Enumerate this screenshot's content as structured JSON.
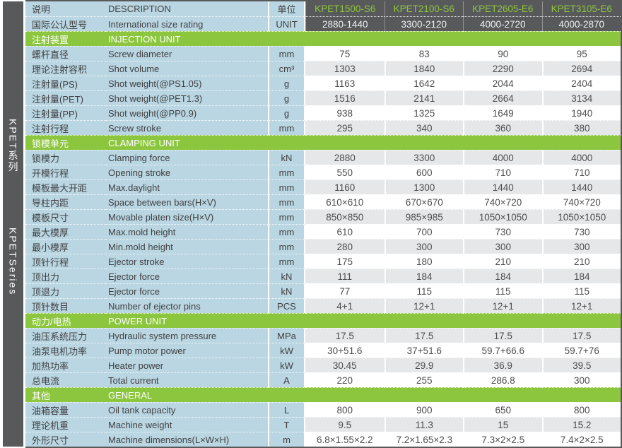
{
  "sidebar": {
    "series_cn": "KPET系列",
    "series_en": "KPETSeries"
  },
  "header": {
    "desc_cn": "说明",
    "desc_en": "DESCRIPTION",
    "unit_cn": "单位",
    "rating_cn": "国际公认型号",
    "rating_en": "International size rating",
    "unit_en": "UNIT",
    "models": [
      "KPET1500-S6",
      "KPET2100-S6",
      "KPET2605-E6",
      "KPET3105-E6"
    ],
    "ratings": [
      "2880-1440",
      "3300-2120",
      "4000-2720",
      "4000-2870"
    ]
  },
  "colors": {
    "dark_gray": "#58595B",
    "green": "#8CC63E",
    "green_text": "#8DC63F",
    "light_blue": "#B9D6E2",
    "row_gray": "#E6E7E8",
    "row_white": "#FFFFFF"
  },
  "sections": [
    {
      "title_cn": "注射装置",
      "title_en": "INJECTION UNIT",
      "rows": [
        {
          "cn": "螺杆直径",
          "en": "Screw diameter",
          "unit": "mm",
          "values": [
            "75",
            "83",
            "90",
            "95"
          ]
        },
        {
          "cn": "理论注射容积",
          "en": "Shot volume",
          "unit": "cm³",
          "values": [
            "1303",
            "1840",
            "2290",
            "2694"
          ]
        },
        {
          "cn": "注射量(PS)",
          "en": "Shot weight(@PS1.05)",
          "unit": "g",
          "values": [
            "1163",
            "1642",
            "2044",
            "2404"
          ]
        },
        {
          "cn": "注射量(PET)",
          "en": "Shot weight(@PET1.3)",
          "unit": "g",
          "values": [
            "1516",
            "2141",
            "2664",
            "3134"
          ]
        },
        {
          "cn": "注射量(PP)",
          "en": "Shot weight(@PP0.9)",
          "unit": "g",
          "values": [
            "938",
            "1325",
            "1649",
            "1940"
          ]
        },
        {
          "cn": "注射行程",
          "en": "Screw stroke",
          "unit": "mm",
          "values": [
            "295",
            "340",
            "360",
            "380"
          ]
        }
      ]
    },
    {
      "title_cn": "锁模单元",
      "title_en": "CLAMPING UNIT",
      "rows": [
        {
          "cn": "锁模力",
          "en": "Clamping force",
          "unit": "kN",
          "values": [
            "2880",
            "3300",
            "4000",
            "4000"
          ]
        },
        {
          "cn": "开模行程",
          "en": "Opening stroke",
          "unit": "mm",
          "values": [
            "550",
            "600",
            "710",
            "710"
          ]
        },
        {
          "cn": "模板最大开距",
          "en": "Max.daylight",
          "unit": "mm",
          "values": [
            "1160",
            "1300",
            "1440",
            "1440"
          ]
        },
        {
          "cn": "导柱内距",
          "en": "Space between bars(H×V)",
          "unit": "mm",
          "values": [
            "610×610",
            "670×670",
            "740×720",
            "740×720"
          ]
        },
        {
          "cn": "模板尺寸",
          "en": "Movable platen size(H×V)",
          "unit": "mm",
          "values": [
            "850×850",
            "985×985",
            "1050×1050",
            "1050×1050"
          ]
        },
        {
          "cn": "最大模厚",
          "en": "Max.mold height",
          "unit": "mm",
          "values": [
            "610",
            "700",
            "730",
            "730"
          ]
        },
        {
          "cn": "最小模厚",
          "en": "Min.mold height",
          "unit": "mm",
          "values": [
            "280",
            "300",
            "300",
            "300"
          ]
        },
        {
          "cn": "顶针行程",
          "en": "Ejector stroke",
          "unit": "mm",
          "values": [
            "175",
            "180",
            "210",
            "210"
          ]
        },
        {
          "cn": "顶出力",
          "en": "Ejector force",
          "unit": "kN",
          "values": [
            "111",
            "184",
            "184",
            "184"
          ]
        },
        {
          "cn": "顶退力",
          "en": "Ejector force",
          "unit": "kN",
          "values": [
            "77",
            "115",
            "115",
            "115"
          ]
        },
        {
          "cn": "顶针数目",
          "en": "Number of ejector pins",
          "unit": "PCS",
          "values": [
            "4+1",
            "12+1",
            "12+1",
            "12+1"
          ]
        }
      ]
    },
    {
      "title_cn": "动力/电热",
      "title_en": "POWER UNIT",
      "rows": [
        {
          "cn": "油压系统压力",
          "en": "Hydraulic system pressure",
          "unit": "MPa",
          "values": [
            "17.5",
            "17.5",
            "17.5",
            "17.5"
          ]
        },
        {
          "cn": "油泵电机功率",
          "en": "Pump motor power",
          "unit": "kW",
          "values": [
            "30+51.6",
            "37+51.6",
            "59.7+66.6",
            "59.7+76"
          ]
        },
        {
          "cn": "加热功率",
          "en": "Heater power",
          "unit": "kW",
          "values": [
            "30.45",
            "29.9",
            "36.9",
            "39.5"
          ]
        },
        {
          "cn": "总电流",
          "en": "Total current",
          "unit": "A",
          "values": [
            "220",
            "255",
            "286.8",
            "300"
          ]
        }
      ]
    },
    {
      "title_cn": "其他",
      "title_en": "GENERAL",
      "rows": [
        {
          "cn": "油箱容量",
          "en": "Oil tank capacity",
          "unit": "L",
          "values": [
            "800",
            "900",
            "650",
            "800"
          ]
        },
        {
          "cn": "理论机重",
          "en": "Machine weight",
          "unit": "T",
          "values": [
            "9.5",
            "11.3",
            "15",
            "15.2"
          ]
        },
        {
          "cn": "外形尺寸",
          "en": "Machine dimensions(L×W×H)",
          "unit": "m",
          "values": [
            "6.8×1.55×2.2",
            "7.2×1.65×2.3",
            "7.3×2×2.5",
            "7.4×2×2.5"
          ]
        }
      ]
    }
  ]
}
